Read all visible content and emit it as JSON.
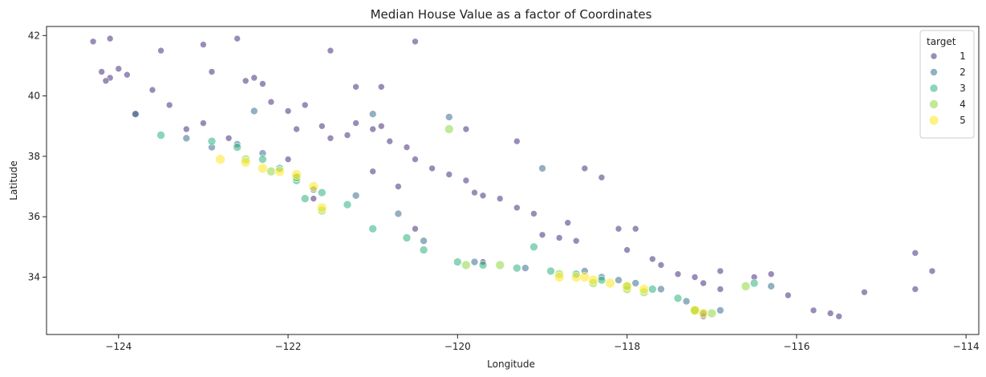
{
  "chart_data": {
    "type": "scatter",
    "title": "Median House Value as a factor of Coordinates",
    "xlabel": "Longitude",
    "ylabel": "Latitude",
    "xlim": [
      -124.85,
      -113.85
    ],
    "ylim": [
      32.1,
      42.3
    ],
    "xticks": [
      -124,
      -122,
      -120,
      -118,
      -116,
      -114
    ],
    "yticks": [
      34,
      36,
      38,
      40,
      42
    ],
    "grid": false,
    "legend": {
      "title": "target",
      "placement": "top-right",
      "entries": [
        "1",
        "2",
        "3",
        "4",
        "5"
      ]
    },
    "colors": [
      "#472d7b",
      "#3b6f8e",
      "#2db27d",
      "#8fd744",
      "#fde725"
    ],
    "series": [
      {
        "name": "1",
        "points": [
          [
            -124.3,
            41.8
          ],
          [
            -124.1,
            41.9
          ],
          [
            -124.2,
            40.8
          ],
          [
            -124.1,
            40.6
          ],
          [
            -124.0,
            40.9
          ],
          [
            -123.9,
            40.7
          ],
          [
            -124.15,
            40.5
          ],
          [
            -123.8,
            39.4
          ],
          [
            -123.6,
            40.2
          ],
          [
            -123.4,
            39.7
          ],
          [
            -123.2,
            38.9
          ],
          [
            -123.0,
            39.1
          ],
          [
            -122.9,
            40.8
          ],
          [
            -122.7,
            38.6
          ],
          [
            -122.5,
            40.5
          ],
          [
            -122.4,
            40.6
          ],
          [
            -122.3,
            40.4
          ],
          [
            -122.2,
            39.8
          ],
          [
            -122.0,
            39.5
          ],
          [
            -121.8,
            39.7
          ],
          [
            -121.9,
            38.9
          ],
          [
            -121.6,
            39.0
          ],
          [
            -121.5,
            38.6
          ],
          [
            -121.3,
            38.7
          ],
          [
            -121.2,
            39.1
          ],
          [
            -121.0,
            38.9
          ],
          [
            -120.8,
            38.5
          ],
          [
            -120.9,
            39.0
          ],
          [
            -120.6,
            38.3
          ],
          [
            -120.5,
            37.9
          ],
          [
            -120.3,
            37.6
          ],
          [
            -120.1,
            37.4
          ],
          [
            -119.9,
            37.2
          ],
          [
            -119.8,
            36.8
          ],
          [
            -119.7,
            36.7
          ],
          [
            -119.5,
            36.6
          ],
          [
            -119.3,
            36.3
          ],
          [
            -119.1,
            36.1
          ],
          [
            -119.0,
            35.4
          ],
          [
            -118.8,
            35.3
          ],
          [
            -118.6,
            35.2
          ],
          [
            -118.1,
            35.6
          ],
          [
            -117.9,
            35.6
          ],
          [
            -117.7,
            34.6
          ],
          [
            -117.6,
            34.4
          ],
          [
            -117.4,
            34.1
          ],
          [
            -117.2,
            34.0
          ],
          [
            -117.1,
            33.8
          ],
          [
            -116.9,
            33.6
          ],
          [
            -116.5,
            34.0
          ],
          [
            -116.3,
            34.1
          ],
          [
            -116.1,
            33.4
          ],
          [
            -115.8,
            32.9
          ],
          [
            -115.6,
            32.8
          ],
          [
            -115.5,
            32.7
          ],
          [
            -115.2,
            33.5
          ],
          [
            -114.6,
            34.8
          ],
          [
            -114.6,
            33.6
          ],
          [
            -114.4,
            34.2
          ],
          [
            -117.1,
            32.7
          ],
          [
            -121.0,
            37.5
          ],
          [
            -120.7,
            37.0
          ],
          [
            -122.0,
            37.9
          ],
          [
            -118.3,
            37.3
          ],
          [
            -116.9,
            34.2
          ],
          [
            -123.5,
            41.5
          ],
          [
            -123.0,
            41.7
          ],
          [
            -122.6,
            41.9
          ],
          [
            -121.5,
            41.5
          ],
          [
            -120.5,
            41.8
          ],
          [
            -121.2,
            40.3
          ],
          [
            -120.9,
            40.3
          ],
          [
            -119.9,
            38.9
          ],
          [
            -119.3,
            38.5
          ],
          [
            -118.5,
            37.6
          ],
          [
            -118.7,
            35.8
          ],
          [
            -118.0,
            34.9
          ],
          [
            -121.7,
            36.6
          ],
          [
            -120.5,
            35.6
          ],
          [
            -119.7,
            34.5
          ]
        ]
      },
      {
        "name": "2",
        "points": [
          [
            -123.8,
            39.4
          ],
          [
            -123.2,
            38.6
          ],
          [
            -122.9,
            38.3
          ],
          [
            -122.6,
            38.4
          ],
          [
            -122.3,
            38.1
          ],
          [
            -121.9,
            37.3
          ],
          [
            -121.7,
            36.9
          ],
          [
            -121.2,
            36.7
          ],
          [
            -120.7,
            36.1
          ],
          [
            -120.4,
            35.2
          ],
          [
            -119.8,
            34.5
          ],
          [
            -119.2,
            34.3
          ],
          [
            -118.5,
            34.2
          ],
          [
            -118.3,
            34.0
          ],
          [
            -118.1,
            33.9
          ],
          [
            -117.9,
            33.8
          ],
          [
            -117.6,
            33.6
          ],
          [
            -117.3,
            33.2
          ],
          [
            -117.1,
            32.8
          ],
          [
            -116.9,
            32.9
          ],
          [
            -116.3,
            33.7
          ],
          [
            -119.0,
            37.6
          ],
          [
            -120.1,
            39.3
          ],
          [
            -121.0,
            39.4
          ],
          [
            -122.4,
            39.5
          ]
        ]
      },
      {
        "name": "3",
        "points": [
          [
            -123.5,
            38.7
          ],
          [
            -122.9,
            38.5
          ],
          [
            -122.6,
            38.3
          ],
          [
            -122.3,
            37.9
          ],
          [
            -122.1,
            37.6
          ],
          [
            -121.9,
            37.2
          ],
          [
            -121.8,
            36.6
          ],
          [
            -121.6,
            36.8
          ],
          [
            -121.0,
            35.6
          ],
          [
            -120.6,
            35.3
          ],
          [
            -120.4,
            34.9
          ],
          [
            -120.0,
            34.5
          ],
          [
            -119.7,
            34.4
          ],
          [
            -119.3,
            34.3
          ],
          [
            -118.9,
            34.2
          ],
          [
            -118.6,
            34.1
          ],
          [
            -118.3,
            33.9
          ],
          [
            -118.0,
            33.7
          ],
          [
            -117.7,
            33.6
          ],
          [
            -117.4,
            33.3
          ],
          [
            -117.2,
            32.9
          ],
          [
            -116.5,
            33.8
          ],
          [
            -119.1,
            35.0
          ],
          [
            -121.3,
            36.4
          ]
        ]
      },
      {
        "name": "4",
        "points": [
          [
            -122.5,
            37.9
          ],
          [
            -122.2,
            37.5
          ],
          [
            -121.9,
            37.3
          ],
          [
            -121.6,
            36.2
          ],
          [
            -119.9,
            34.4
          ],
          [
            -119.5,
            34.4
          ],
          [
            -118.8,
            34.1
          ],
          [
            -118.4,
            33.8
          ],
          [
            -118.0,
            33.6
          ],
          [
            -117.8,
            33.5
          ],
          [
            -117.2,
            32.9
          ],
          [
            -117.0,
            32.8
          ],
          [
            -116.6,
            33.7
          ],
          [
            -120.1,
            38.9
          ]
        ]
      },
      {
        "name": "5",
        "points": [
          [
            -122.8,
            37.9
          ],
          [
            -122.5,
            37.8
          ],
          [
            -122.3,
            37.6
          ],
          [
            -122.1,
            37.5
          ],
          [
            -121.9,
            37.4
          ],
          [
            -121.7,
            37.0
          ],
          [
            -121.6,
            36.3
          ],
          [
            -118.8,
            34.0
          ],
          [
            -118.6,
            34.0
          ],
          [
            -118.5,
            34.0
          ],
          [
            -118.4,
            33.9
          ],
          [
            -118.2,
            33.8
          ],
          [
            -118.0,
            33.7
          ],
          [
            -117.8,
            33.6
          ],
          [
            -117.2,
            32.9
          ],
          [
            -117.1,
            32.8
          ]
        ]
      }
    ]
  }
}
